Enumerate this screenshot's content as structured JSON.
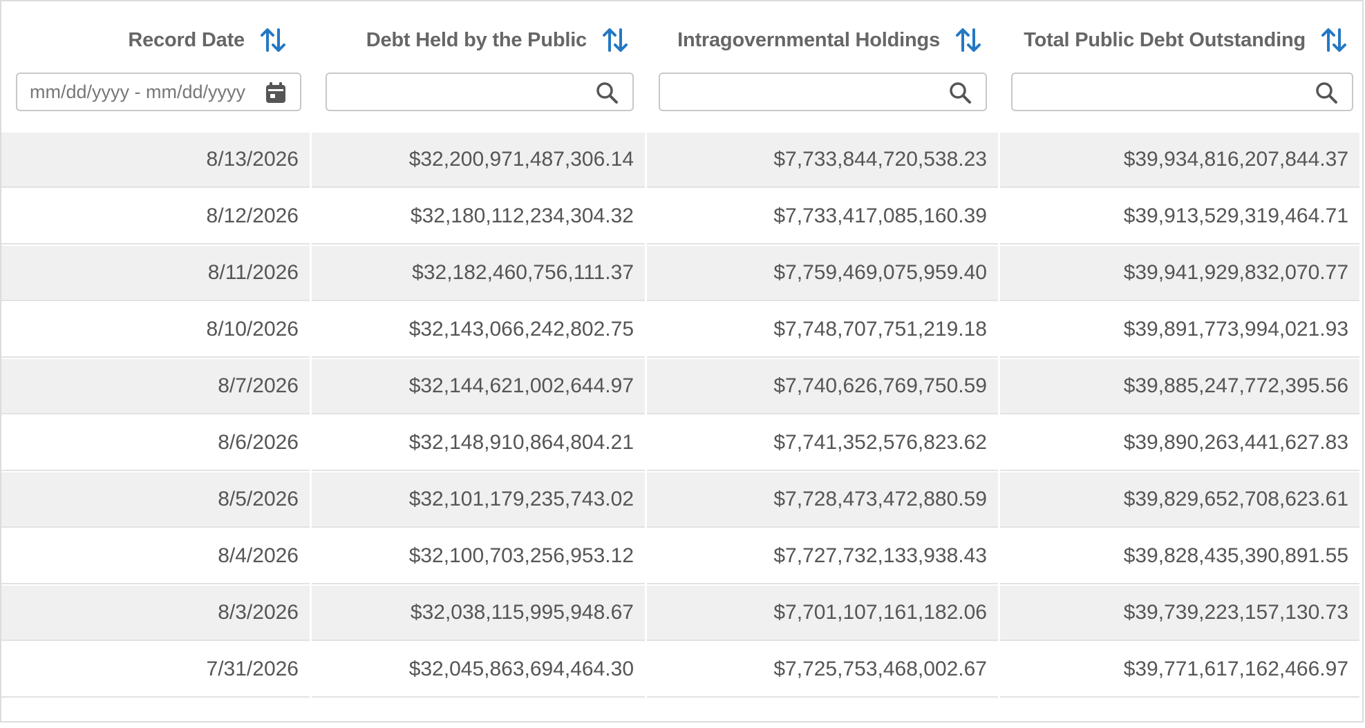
{
  "columns": [
    {
      "label": "Record Date",
      "filter_placeholder": "mm/dd/yyyy - mm/dd/yyyy",
      "filter_icon": "calendar-icon"
    },
    {
      "label": "Debt Held by the Public",
      "filter_placeholder": "",
      "filter_icon": "search-icon"
    },
    {
      "label": "Intragovernmental Holdings",
      "filter_placeholder": "",
      "filter_icon": "search-icon"
    },
    {
      "label": "Total Public Debt Outstanding",
      "filter_placeholder": "",
      "filter_icon": "search-icon"
    }
  ],
  "sort_icon": "sort-arrows-icon",
  "colors": {
    "accent": "#2378c3",
    "header_text": "#666666",
    "cell_text": "#555555",
    "shaded_row": "#f0f0f0",
    "border": "#dcdcdc"
  },
  "rows": [
    [
      "8/13/2026",
      "$32,200,971,487,306.14",
      "$7,733,844,720,538.23",
      "$39,934,816,207,844.37"
    ],
    [
      "8/12/2026",
      "$32,180,112,234,304.32",
      "$7,733,417,085,160.39",
      "$39,913,529,319,464.71"
    ],
    [
      "8/11/2026",
      "$32,182,460,756,111.37",
      "$7,759,469,075,959.40",
      "$39,941,929,832,070.77"
    ],
    [
      "8/10/2026",
      "$32,143,066,242,802.75",
      "$7,748,707,751,219.18",
      "$39,891,773,994,021.93"
    ],
    [
      "8/7/2026",
      "$32,144,621,002,644.97",
      "$7,740,626,769,750.59",
      "$39,885,247,772,395.56"
    ],
    [
      "8/6/2026",
      "$32,148,910,864,804.21",
      "$7,741,352,576,823.62",
      "$39,890,263,441,627.83"
    ],
    [
      "8/5/2026",
      "$32,101,179,235,743.02",
      "$7,728,473,472,880.59",
      "$39,829,652,708,623.61"
    ],
    [
      "8/4/2026",
      "$32,100,703,256,953.12",
      "$7,727,732,133,938.43",
      "$39,828,435,390,891.55"
    ],
    [
      "8/3/2026",
      "$32,038,115,995,948.67",
      "$7,701,107,161,182.06",
      "$39,739,223,157,130.73"
    ],
    [
      "7/31/2026",
      "$32,045,863,694,464.30",
      "$7,725,753,468,002.67",
      "$39,771,617,162,466.97"
    ]
  ]
}
